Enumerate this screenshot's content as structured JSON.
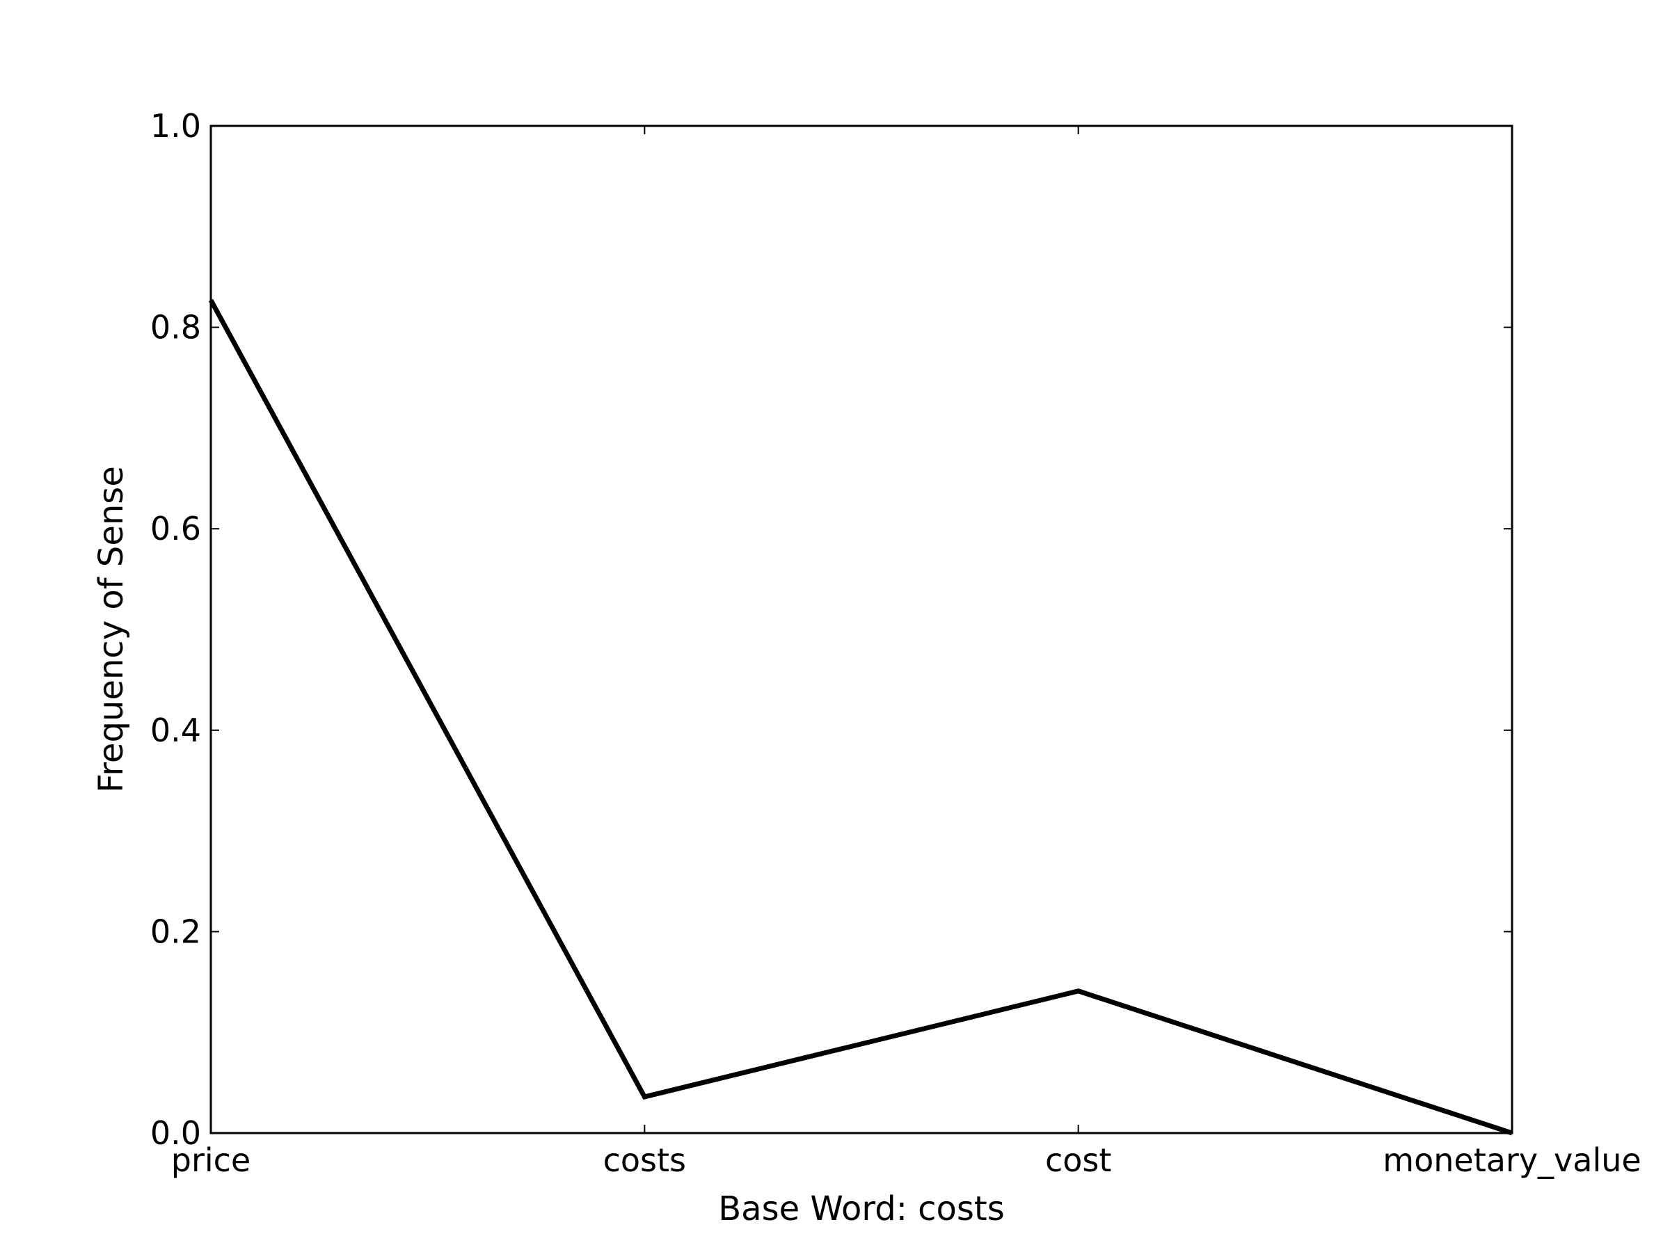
{
  "chart_data": {
    "type": "line",
    "categories": [
      "price",
      "costs",
      "cost",
      "monetary_value"
    ],
    "series": [
      {
        "values": [
          0.827,
          0.036,
          0.141,
          0.0
        ]
      }
    ],
    "xlabel": "Base Word: costs",
    "ylabel": "Frequency of Sense",
    "ylim": [
      0.0,
      1.0
    ],
    "yticks": [
      "0.0",
      "0.2",
      "0.4",
      "0.6",
      "0.8",
      "1.0"
    ],
    "grid": false,
    "line_color": "#000000"
  }
}
